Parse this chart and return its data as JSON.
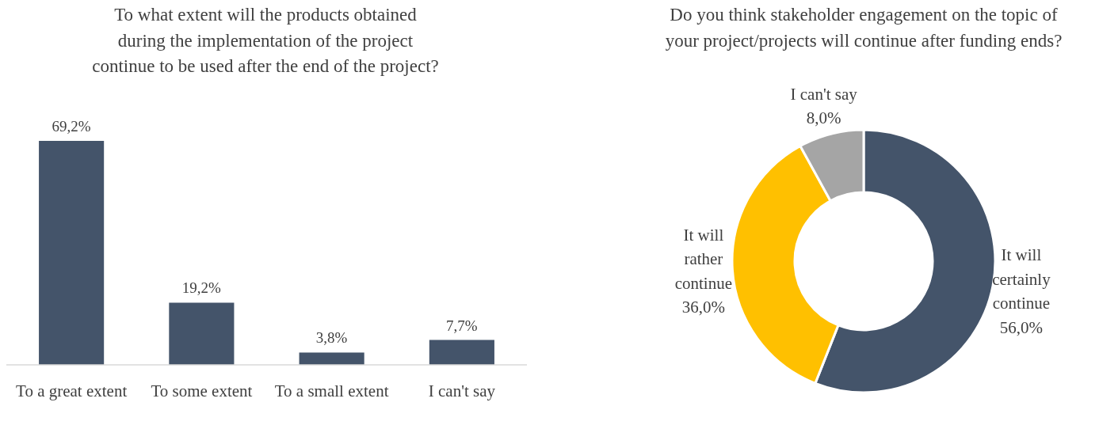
{
  "chart_data": [
    {
      "type": "bar",
      "title": "To what extent will the products obtained during the implementation of the project continue to be used after the end of the project?",
      "categories": [
        "To a great extent",
        "To some extent",
        "To a small extent",
        "I can't say"
      ],
      "values": [
        69.2,
        19.2,
        3.8,
        7.7
      ],
      "color": "#44546a",
      "value_labels": [
        "69,2%",
        "19,2%",
        "3,8%",
        "7,7%"
      ]
    },
    {
      "type": "donut",
      "title": "Do you think stakeholder engagement on the topic of your project/projects will continue after funding ends?",
      "categories": [
        "It will certainly continue",
        "It will rather continue",
        "I can't say"
      ],
      "values": [
        56.0,
        36.0,
        8.0
      ],
      "colors": [
        "#44546a",
        "#ffc000",
        "#a5a5a5"
      ],
      "value_labels": [
        "56,0%",
        "36,0%",
        "8,0%"
      ]
    }
  ]
}
